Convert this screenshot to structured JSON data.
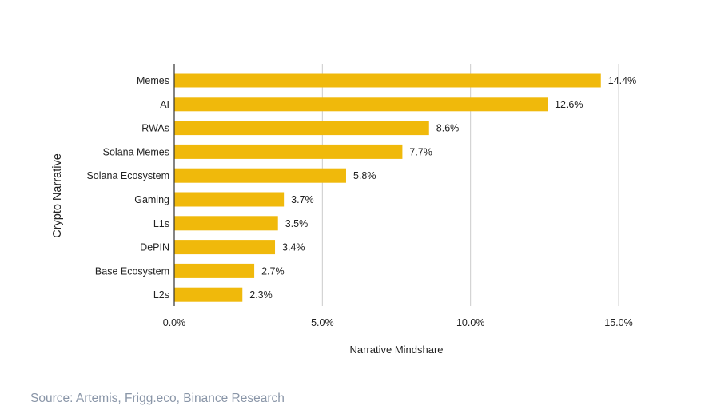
{
  "chart_data": {
    "type": "bar",
    "orientation": "horizontal",
    "categories": [
      "Memes",
      "AI",
      "RWAs",
      "Solana Memes",
      "Solana Ecosystem",
      "Gaming",
      "L1s",
      "DePIN",
      "Base Ecosystem",
      "L2s"
    ],
    "values": [
      14.4,
      12.6,
      8.6,
      7.7,
      5.8,
      3.7,
      3.5,
      3.4,
      2.7,
      2.3
    ],
    "value_labels": [
      "14.4%",
      "12.6%",
      "8.6%",
      "7.7%",
      "5.8%",
      "3.7%",
      "3.5%",
      "3.4%",
      "2.7%",
      "2.3%"
    ],
    "xlabel": "Narrative Mindshare",
    "ylabel": "Crypto Narrative",
    "xlim": [
      0,
      15
    ],
    "xticks": [
      0,
      5,
      10,
      15
    ],
    "xtick_labels": [
      "0.0%",
      "5.0%",
      "10.0%",
      "15.0%"
    ],
    "grid": "vertical",
    "bar_color": "#f0b90b",
    "grid_color": "#cccccc",
    "axis_color": "#333333"
  },
  "source_text": "Source: Artemis, Frigg.eco, Binance Research"
}
